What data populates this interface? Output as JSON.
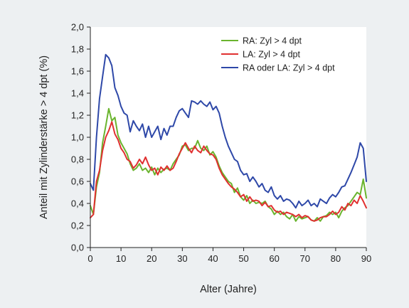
{
  "chart_data": {
    "type": "line",
    "xlabel": "Alter (Jahre)",
    "ylabel": "Anteil mit Zylinderstärke > 4 dpt (%)",
    "xlim": [
      0,
      90
    ],
    "ylim": [
      0,
      2
    ],
    "x_ticks": [
      "0",
      "10",
      "20",
      "30",
      "40",
      "50",
      "60",
      "70",
      "80",
      "90"
    ],
    "y_ticks": [
      "0,0",
      "0,2",
      "0,4",
      "0,6",
      "0,8",
      "1,0",
      "1,2",
      "1,4",
      "1,6",
      "1,8",
      "2,0"
    ],
    "grid": false,
    "legend_position": "top-right",
    "series": [
      {
        "name": "RA: Zyl > 4 dpt",
        "color": "#6ab42e",
        "x": [
          0,
          1,
          2,
          3,
          4,
          5,
          6,
          7,
          8,
          9,
          10,
          11,
          12,
          13,
          14,
          15,
          16,
          17,
          18,
          19,
          20,
          21,
          22,
          23,
          24,
          25,
          26,
          27,
          28,
          29,
          30,
          31,
          32,
          33,
          34,
          35,
          36,
          37,
          38,
          39,
          40,
          41,
          42,
          43,
          44,
          45,
          46,
          47,
          48,
          49,
          50,
          51,
          52,
          53,
          54,
          55,
          56,
          57,
          58,
          59,
          60,
          61,
          62,
          63,
          64,
          65,
          66,
          67,
          68,
          69,
          70,
          71,
          72,
          73,
          74,
          75,
          76,
          77,
          78,
          79,
          80,
          81,
          82,
          83,
          84,
          85,
          86,
          87,
          88,
          89,
          90
        ],
        "y": [
          0.38,
          0.3,
          0.55,
          0.68,
          0.95,
          1.1,
          1.26,
          1.15,
          1.18,
          1.02,
          0.95,
          0.9,
          0.85,
          0.76,
          0.7,
          0.72,
          0.76,
          0.7,
          0.72,
          0.68,
          0.73,
          0.66,
          0.72,
          0.68,
          0.71,
          0.72,
          0.7,
          0.76,
          0.8,
          0.84,
          0.92,
          0.93,
          0.88,
          0.9,
          0.9,
          0.97,
          0.9,
          0.88,
          0.92,
          0.84,
          0.87,
          0.82,
          0.74,
          0.68,
          0.64,
          0.6,
          0.58,
          0.5,
          0.54,
          0.46,
          0.43,
          0.47,
          0.4,
          0.43,
          0.4,
          0.41,
          0.4,
          0.42,
          0.37,
          0.35,
          0.3,
          0.33,
          0.3,
          0.32,
          0.28,
          0.26,
          0.3,
          0.24,
          0.28,
          0.26,
          0.27,
          0.28,
          0.25,
          0.24,
          0.27,
          0.24,
          0.28,
          0.29,
          0.32,
          0.3,
          0.32,
          0.27,
          0.33,
          0.36,
          0.38,
          0.42,
          0.46,
          0.5,
          0.48,
          0.62,
          0.45
        ]
      },
      {
        "name": "LA: Zyl > 4 dpt",
        "color": "#e03030",
        "x": [
          0,
          1,
          2,
          3,
          4,
          5,
          6,
          7,
          8,
          9,
          10,
          11,
          12,
          13,
          14,
          15,
          16,
          17,
          18,
          19,
          20,
          21,
          22,
          23,
          24,
          25,
          26,
          27,
          28,
          29,
          30,
          31,
          32,
          33,
          34,
          35,
          36,
          37,
          38,
          39,
          40,
          41,
          42,
          43,
          44,
          45,
          46,
          47,
          48,
          49,
          50,
          51,
          52,
          53,
          54,
          55,
          56,
          57,
          58,
          59,
          60,
          61,
          62,
          63,
          64,
          65,
          66,
          67,
          68,
          69,
          70,
          71,
          72,
          73,
          74,
          75,
          76,
          77,
          78,
          79,
          80,
          81,
          82,
          83,
          84,
          85,
          86,
          87,
          88,
          89,
          90
        ],
        "y": [
          0.27,
          0.3,
          0.6,
          0.7,
          0.88,
          1.0,
          1.06,
          1.14,
          1.03,
          0.98,
          0.9,
          0.86,
          0.8,
          0.78,
          0.72,
          0.75,
          0.8,
          0.76,
          0.82,
          0.75,
          0.7,
          0.72,
          0.66,
          0.73,
          0.7,
          0.74,
          0.7,
          0.72,
          0.78,
          0.85,
          0.9,
          0.95,
          0.9,
          0.86,
          0.92,
          0.88,
          0.86,
          0.92,
          0.88,
          0.85,
          0.84,
          0.8,
          0.72,
          0.66,
          0.62,
          0.58,
          0.55,
          0.53,
          0.5,
          0.46,
          0.48,
          0.42,
          0.46,
          0.42,
          0.43,
          0.42,
          0.38,
          0.41,
          0.37,
          0.38,
          0.34,
          0.32,
          0.33,
          0.3,
          0.32,
          0.31,
          0.3,
          0.28,
          0.3,
          0.27,
          0.29,
          0.28,
          0.25,
          0.24,
          0.25,
          0.27,
          0.28,
          0.28,
          0.3,
          0.33,
          0.3,
          0.32,
          0.37,
          0.34,
          0.4,
          0.38,
          0.43,
          0.4,
          0.47,
          0.42,
          0.36
        ]
      },
      {
        "name": "RA oder LA: Zyl > 4 dpt",
        "color": "#2e48a8",
        "x": [
          0,
          1,
          2,
          3,
          4,
          5,
          6,
          7,
          8,
          9,
          10,
          11,
          12,
          13,
          14,
          15,
          16,
          17,
          18,
          19,
          20,
          21,
          22,
          23,
          24,
          25,
          26,
          27,
          28,
          29,
          30,
          31,
          32,
          33,
          34,
          35,
          36,
          37,
          38,
          39,
          40,
          41,
          42,
          43,
          44,
          45,
          46,
          47,
          48,
          49,
          50,
          51,
          52,
          53,
          54,
          55,
          56,
          57,
          58,
          59,
          60,
          61,
          62,
          63,
          64,
          65,
          66,
          67,
          68,
          69,
          70,
          71,
          72,
          73,
          74,
          75,
          76,
          77,
          78,
          79,
          80,
          81,
          82,
          83,
          84,
          85,
          86,
          87,
          88,
          89,
          90
        ],
        "y": [
          0.58,
          0.52,
          1.0,
          1.35,
          1.55,
          1.75,
          1.72,
          1.65,
          1.45,
          1.38,
          1.28,
          1.22,
          1.2,
          1.05,
          1.15,
          1.1,
          1.06,
          1.12,
          1.0,
          1.1,
          1.0,
          1.05,
          1.1,
          0.98,
          1.08,
          1.02,
          1.1,
          1.1,
          1.18,
          1.24,
          1.26,
          1.22,
          1.18,
          1.33,
          1.32,
          1.3,
          1.33,
          1.3,
          1.28,
          1.32,
          1.25,
          1.28,
          1.22,
          1.1,
          1.0,
          0.92,
          0.86,
          0.8,
          0.78,
          0.7,
          0.66,
          0.67,
          0.6,
          0.64,
          0.6,
          0.55,
          0.58,
          0.52,
          0.5,
          0.55,
          0.47,
          0.44,
          0.47,
          0.42,
          0.44,
          0.43,
          0.4,
          0.36,
          0.42,
          0.38,
          0.4,
          0.43,
          0.38,
          0.4,
          0.37,
          0.44,
          0.42,
          0.4,
          0.45,
          0.48,
          0.46,
          0.5,
          0.55,
          0.56,
          0.62,
          0.68,
          0.75,
          0.82,
          0.95,
          0.9,
          0.6
        ]
      }
    ]
  }
}
